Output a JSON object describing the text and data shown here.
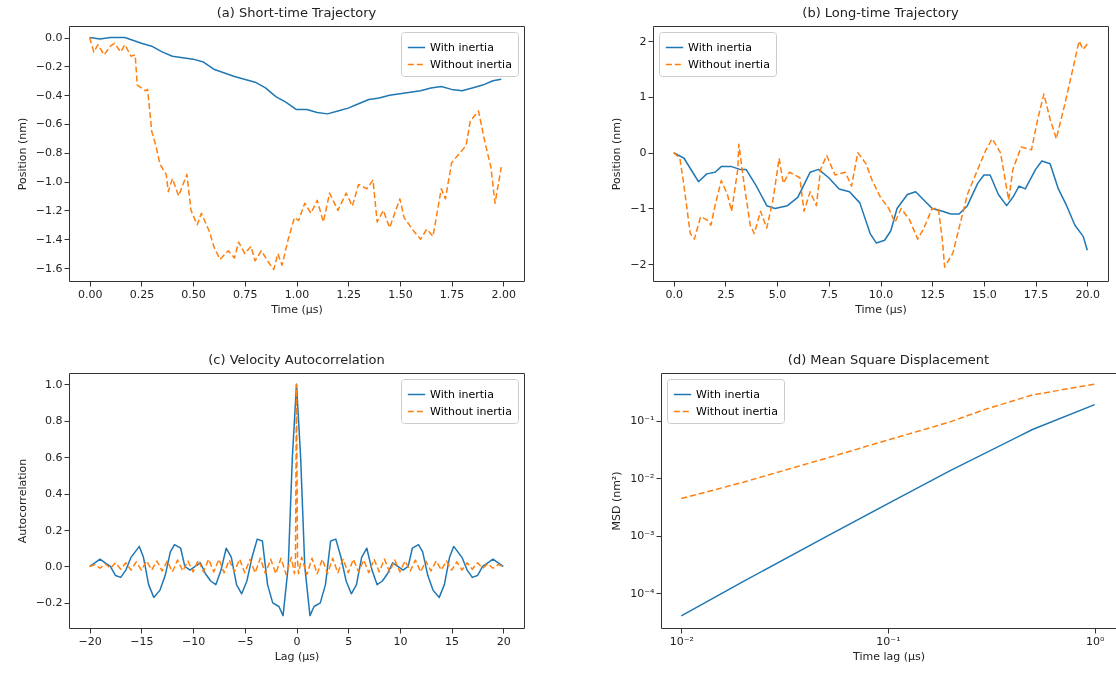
{
  "chart_data": [
    {
      "type": "line",
      "title": "(a) Short-time Trajectory",
      "xlabel": "Time (μs)",
      "ylabel": "Position (nm)",
      "xlim": [
        -0.1,
        2.1
      ],
      "ylim": [
        -1.69,
        0.08
      ],
      "xticks": [
        {
          "value": 0,
          "label": "0.00"
        },
        0.25,
        {
          "value": 0.5,
          "label": "0.50"
        },
        0.75,
        {
          "value": 1,
          "label": "1.00"
        },
        1.25,
        {
          "value": 1.5,
          "label": "1.50"
        },
        1.75,
        {
          "value": 2,
          "label": "2.00"
        }
      ],
      "yticks": [
        -1.6,
        -1.4,
        -1.2,
        {
          "value": -1,
          "label": "−1.0"
        },
        -0.8,
        -0.6,
        -0.4,
        -0.2,
        {
          "value": 0,
          "label": "0.0"
        }
      ],
      "legend": "top right",
      "series": [
        {
          "name": "With inertia",
          "color": "#1f77b4",
          "line_style": "solid",
          "x": [
            0,
            0.05,
            0.1,
            0.17,
            0.25,
            0.3,
            0.35,
            0.4,
            0.5,
            0.55,
            0.6,
            0.7,
            0.8,
            0.85,
            0.9,
            0.95,
            1,
            1.05,
            1.1,
            1.15,
            1.2,
            1.25,
            1.3,
            1.35,
            1.4,
            1.45,
            1.5,
            1.55,
            1.6,
            1.65,
            1.7,
            1.75,
            1.8,
            1.85,
            1.9,
            1.95,
            1.99
          ],
          "values": [
            0,
            -0.01,
            0,
            0,
            -0.04,
            -0.06,
            -0.1,
            -0.13,
            -0.15,
            -0.17,
            -0.22,
            -0.27,
            -0.31,
            -0.35,
            -0.41,
            -0.45,
            -0.5,
            -0.5,
            -0.52,
            -0.53,
            -0.51,
            -0.49,
            -0.46,
            -0.43,
            -0.42,
            -0.4,
            -0.39,
            -0.38,
            -0.37,
            -0.35,
            -0.34,
            -0.36,
            -0.37,
            -0.35,
            -0.33,
            -0.3,
            -0.29
          ]
        },
        {
          "name": "Without inertia",
          "color": "#ff7f0e",
          "line_style": "dashed",
          "x": [
            0,
            0.02,
            0.04,
            0.07,
            0.1,
            0.12,
            0.15,
            0.17,
            0.2,
            0.22,
            0.23,
            0.27,
            0.28,
            0.3,
            0.32,
            0.34,
            0.37,
            0.38,
            0.4,
            0.43,
            0.47,
            0.49,
            0.52,
            0.54,
            0.58,
            0.6,
            0.63,
            0.67,
            0.7,
            0.72,
            0.75,
            0.78,
            0.8,
            0.83,
            0.86,
            0.89,
            0.91,
            0.93,
            0.96,
            0.99,
            1.01,
            1.04,
            1.07,
            1.1,
            1.13,
            1.16,
            1.2,
            1.24,
            1.27,
            1.3,
            1.34,
            1.37,
            1.39,
            1.42,
            1.45,
            1.5,
            1.52,
            1.57,
            1.6,
            1.63,
            1.66,
            1.7,
            1.72,
            1.75,
            1.79,
            1.82,
            1.84,
            1.88,
            1.91,
            1.94,
            1.96,
            1.99
          ],
          "values": [
            0,
            -0.1,
            -0.05,
            -0.12,
            -0.06,
            -0.04,
            -0.1,
            -0.05,
            -0.13,
            -0.12,
            -0.33,
            -0.37,
            -0.36,
            -0.65,
            -0.75,
            -0.88,
            -0.95,
            -1.07,
            -0.98,
            -1.1,
            -0.95,
            -1.2,
            -1.3,
            -1.22,
            -1.35,
            -1.45,
            -1.54,
            -1.48,
            -1.53,
            -1.42,
            -1.5,
            -1.45,
            -1.55,
            -1.48,
            -1.55,
            -1.61,
            -1.5,
            -1.58,
            -1.4,
            -1.25,
            -1.27,
            -1.15,
            -1.22,
            -1.13,
            -1.28,
            -1.08,
            -1.2,
            -1.08,
            -1.17,
            -1.02,
            -1.05,
            -0.99,
            -1.28,
            -1.2,
            -1.32,
            -1.12,
            -1.25,
            -1.35,
            -1.4,
            -1.33,
            -1.38,
            -1.05,
            -1.12,
            -0.87,
            -0.8,
            -0.75,
            -0.58,
            -0.51,
            -0.72,
            -0.9,
            -1.15,
            -0.9
          ]
        }
      ]
    },
    {
      "type": "line",
      "title": "(b) Long-time Trajectory",
      "xlabel": "Time (μs)",
      "ylabel": "Position (nm)",
      "xlim": [
        -1,
        21
      ],
      "ylim": [
        -2.3,
        2.27
      ],
      "xticks": [
        {
          "value": 0,
          "label": "0.0"
        },
        2.5,
        {
          "value": 5,
          "label": "5.0"
        },
        7.5,
        {
          "value": 10,
          "label": "10.0"
        },
        12.5,
        {
          "value": 15,
          "label": "15.0"
        },
        17.5,
        {
          "value": 20,
          "label": "20.0"
        }
      ],
      "yticks": [
        -2,
        -1,
        0,
        1,
        2
      ],
      "legend": "top left",
      "series": [
        {
          "name": "With inertia",
          "color": "#1f77b4",
          "line_style": "solid",
          "x": [
            0,
            0.5,
            1,
            1.2,
            1.6,
            2,
            2.3,
            2.8,
            3.2,
            3.5,
            4,
            4.5,
            4.9,
            5.5,
            6,
            6.6,
            7,
            7.5,
            8,
            8.5,
            9,
            9.5,
            9.8,
            10.2,
            10.5,
            10.8,
            11.3,
            11.7,
            12.5,
            13,
            13.4,
            13.8,
            14.2,
            14.7,
            15,
            15.3,
            15.7,
            16.1,
            16.4,
            16.7,
            17,
            17.5,
            17.8,
            18.2,
            18.6,
            19,
            19.4,
            19.8,
            20
          ],
          "values": [
            0,
            -0.1,
            -0.4,
            -0.52,
            -0.38,
            -0.35,
            -0.25,
            -0.25,
            -0.3,
            -0.3,
            -0.6,
            -0.95,
            -1,
            -0.95,
            -0.8,
            -0.35,
            -0.3,
            -0.45,
            -0.65,
            -0.7,
            -0.9,
            -1.45,
            -1.62,
            -1.57,
            -1.4,
            -1,
            -0.75,
            -0.7,
            -1,
            -1.05,
            -1.1,
            -1.1,
            -0.95,
            -0.55,
            -0.4,
            -0.4,
            -0.75,
            -0.95,
            -0.8,
            -0.6,
            -0.65,
            -0.3,
            -0.15,
            -0.2,
            -0.65,
            -0.95,
            -1.3,
            -1.5,
            -1.75
          ]
        },
        {
          "name": "Without inertia",
          "color": "#ff7f0e",
          "line_style": "dashed",
          "x": [
            0,
            0.3,
            0.5,
            0.8,
            1,
            1.3,
            1.6,
            1.8,
            2,
            2.3,
            2.6,
            2.8,
            3.1,
            3.15,
            3.4,
            3.7,
            3.9,
            4.2,
            4.5,
            4.8,
            5.1,
            5.3,
            5.6,
            6.1,
            6.3,
            6.6,
            6.9,
            7.1,
            7.4,
            7.8,
            8.3,
            8.6,
            8.9,
            9.3,
            9.6,
            10,
            10.4,
            10.7,
            11,
            11.4,
            11.8,
            12.1,
            12.5,
            12.8,
            13,
            13.1,
            13.5,
            13.9,
            14.2,
            14.7,
            15.1,
            15.4,
            15.8,
            16.2,
            16.4,
            16.8,
            17.3,
            17.6,
            17.9,
            18.2,
            18.5,
            18.9,
            19.3,
            19.6,
            19.8,
            20
          ],
          "values": [
            0,
            -0.1,
            -0.6,
            -1.45,
            -1.55,
            -1.15,
            -1.2,
            -1.3,
            -0.95,
            -0.5,
            -0.75,
            -1.05,
            -0.3,
            0.15,
            -0.55,
            -1.3,
            -1.45,
            -1.05,
            -1.35,
            -0.85,
            -0.1,
            -0.55,
            -0.35,
            -0.45,
            -1.05,
            -0.7,
            -0.95,
            -0.3,
            -0.05,
            -0.4,
            -0.35,
            -0.6,
            0,
            -0.2,
            -0.5,
            -0.8,
            -1,
            -1.25,
            -1,
            -1.2,
            -1.55,
            -1.35,
            -1,
            -1,
            -1.6,
            -2.05,
            -1.8,
            -1.2,
            -0.75,
            -0.3,
            0.05,
            0.25,
            0,
            -0.85,
            -0.3,
            0.1,
            0.05,
            0.6,
            1.05,
            0.6,
            0.25,
            0.85,
            1.5,
            2,
            1.85,
            1.95
          ]
        }
      ]
    },
    {
      "type": "line",
      "title": "(c) Velocity Autocorrelation",
      "xlabel": "Lag (μs)",
      "ylabel": "Autocorrelation",
      "xlim": [
        -22,
        22
      ],
      "ylim": [
        -0.338,
        1.062
      ],
      "xticks": [
        -20,
        -15,
        -10,
        -5,
        0,
        5,
        10,
        15,
        20
      ],
      "yticks": [
        -0.2,
        {
          "value": 0,
          "label": "0.0"
        },
        0.2,
        0.4,
        0.6,
        0.8,
        {
          "value": 1,
          "label": "1.0"
        }
      ],
      "legend": "top right",
      "series": [
        {
          "name": "With inertia",
          "color": "#1f77b4",
          "line_style": "solid",
          "x": [
            -20,
            -19.5,
            -19,
            -18.5,
            -18,
            -17.5,
            -17,
            -16.5,
            -16,
            -15.2,
            -14.8,
            -14.3,
            -13.8,
            -13.2,
            -12.7,
            -12.2,
            -11.8,
            -11.2,
            -10.8,
            -10.3,
            -9.8,
            -9.3,
            -8.8,
            -8.3,
            -7.8,
            -7.3,
            -6.8,
            -6.3,
            -5.8,
            -5.3,
            -4.8,
            -4.3,
            -3.8,
            -3.3,
            -2.8,
            -2.3,
            -1.7,
            -1.3,
            -0.8,
            -0.4,
            0,
            0.4,
            0.8,
            1.3,
            1.7,
            2.3,
            2.8,
            3.3,
            3.8,
            4.3,
            4.8,
            5.3,
            5.8,
            6.3,
            6.8,
            7.3,
            7.8,
            8.3,
            8.8,
            9.3,
            9.8,
            10.3,
            10.8,
            11.2,
            11.8,
            12.2,
            12.7,
            13.2,
            13.8,
            14.3,
            14.8,
            15.2,
            16,
            16.5,
            17,
            17.5,
            18,
            18.5,
            19,
            19.5,
            20
          ],
          "values": [
            0,
            0.02,
            0.04,
            0.02,
            0,
            -0.05,
            -0.06,
            -0.02,
            0.05,
            0.11,
            0.05,
            -0.1,
            -0.17,
            -0.13,
            -0.05,
            0.08,
            0.12,
            0.1,
            0,
            -0.02,
            0,
            0.02,
            -0.04,
            -0.08,
            -0.1,
            -0.02,
            0.1,
            0.05,
            -0.1,
            -0.15,
            -0.08,
            0.05,
            0.15,
            0.14,
            -0.1,
            -0.2,
            -0.22,
            -0.27,
            0,
            0.6,
            1,
            0.6,
            0,
            -0.27,
            -0.22,
            -0.2,
            -0.1,
            0.14,
            0.15,
            0.05,
            -0.08,
            -0.15,
            -0.1,
            0.05,
            0.1,
            -0.02,
            -0.1,
            -0.08,
            -0.04,
            0.02,
            0,
            -0.02,
            0,
            0.1,
            0.12,
            0.08,
            -0.05,
            -0.13,
            -0.17,
            -0.1,
            0.05,
            0.11,
            0.05,
            -0.02,
            -0.06,
            -0.05,
            0,
            0.02,
            0.04,
            0.02,
            0
          ]
        },
        {
          "name": "Without inertia",
          "color": "#ff7f0e",
          "line_style": "dashed",
          "x": [
            -20,
            -19.5,
            -19,
            -18.5,
            -18,
            -17.5,
            -17,
            -16.5,
            -16,
            -15.5,
            -15,
            -14.5,
            -14,
            -13.5,
            -13,
            -12.5,
            -12,
            -11.5,
            -11,
            -10.5,
            -10,
            -9.5,
            -9,
            -8.5,
            -8,
            -7.5,
            -7,
            -6.5,
            -6,
            -5.5,
            -5,
            -4.5,
            -4,
            -3.5,
            -3,
            -2.5,
            -2,
            -1.5,
            -1,
            -0.5,
            -0.2,
            -0.1,
            0,
            0.1,
            0.2,
            0.5,
            1,
            1.5,
            2,
            2.5,
            3,
            3.5,
            4,
            4.5,
            5,
            5.5,
            6,
            6.5,
            7,
            7.5,
            8,
            8.5,
            9,
            9.5,
            10,
            10.5,
            11,
            11.5,
            12,
            12.5,
            13,
            13.5,
            14,
            14.5,
            15,
            15.5,
            16,
            16.5,
            17,
            17.5,
            18,
            18.5,
            19,
            19.5,
            20
          ],
          "values": [
            0,
            0.01,
            -0.01,
            0.015,
            -0.01,
            0.02,
            -0.015,
            0.02,
            -0.02,
            0.025,
            -0.02,
            0.03,
            -0.02,
            0.03,
            -0.025,
            0.03,
            -0.03,
            0.035,
            -0.025,
            0.03,
            -0.03,
            0.035,
            -0.03,
            0.04,
            -0.03,
            0.04,
            -0.035,
            0.035,
            -0.03,
            0.04,
            -0.035,
            0.04,
            -0.035,
            0.045,
            -0.04,
            0.04,
            -0.04,
            0.045,
            -0.045,
            0.05,
            -0.04,
            0.03,
            1,
            0.03,
            -0.04,
            0.05,
            -0.045,
            0.045,
            -0.04,
            0.04,
            -0.04,
            0.045,
            -0.035,
            0.04,
            -0.035,
            0.04,
            -0.03,
            0.035,
            -0.035,
            0.04,
            -0.03,
            0.04,
            -0.03,
            0.035,
            -0.03,
            0.03,
            -0.025,
            0.035,
            -0.03,
            0.03,
            -0.025,
            0.03,
            -0.02,
            0.03,
            -0.02,
            0.025,
            -0.02,
            0.02,
            -0.015,
            0.02,
            -0.01,
            0.015,
            -0.01,
            0.01,
            0
          ]
        }
      ]
    },
    {
      "type": "line",
      "title": "(d) Mean Square Displacement",
      "xlabel": "Time lag (μs)",
      "ylabel": "MSD (nm²)",
      "log": "xy",
      "xlim": [
        0.00798,
        1.268
      ],
      "ylim": [
        2.47e-05,
        0.673
      ],
      "xticks": [
        {
          "value": 0.01,
          "label": "10⁻²"
        },
        {
          "value": 0.1,
          "label": "10⁻¹"
        },
        {
          "value": 1,
          "label": "10⁰"
        }
      ],
      "yticks": [
        {
          "value": 0.0001,
          "label": "10⁻⁴"
        },
        {
          "value": 0.001,
          "label": "10⁻³"
        },
        {
          "value": 0.01,
          "label": "10⁻²"
        },
        {
          "value": 0.1,
          "label": "10⁻¹"
        }
      ],
      "legend": "top left",
      "series": [
        {
          "name": "With inertia",
          "color": "#1f77b4",
          "line_style": "solid",
          "x": [
            0.01,
            0.02,
            0.05,
            0.1,
            0.2,
            0.5,
            1
          ],
          "values": [
            4e-05,
            0.00016,
            0.00095,
            0.0036,
            0.0135,
            0.07,
            0.19
          ]
        },
        {
          "name": "Without inertia",
          "color": "#ff7f0e",
          "line_style": "dashed",
          "x": [
            0.01,
            0.02,
            0.05,
            0.1,
            0.2,
            0.3,
            0.5,
            1
          ],
          "values": [
            0.0044,
            0.0085,
            0.022,
            0.046,
            0.095,
            0.16,
            0.28,
            0.43
          ]
        }
      ]
    }
  ]
}
